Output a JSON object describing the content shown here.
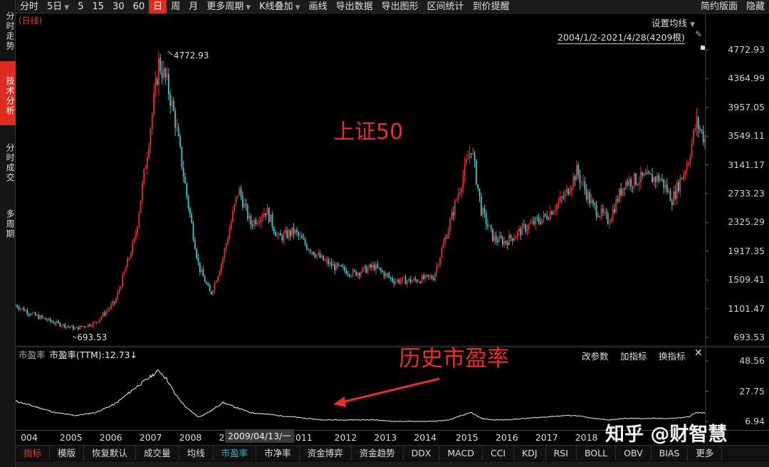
{
  "toolbar": {
    "items": [
      "分时",
      "5日",
      "5",
      "15",
      "30",
      "60",
      "日",
      "周",
      "月",
      "更多周期",
      "K线叠加",
      "画线",
      "导出数据",
      "导出图形",
      "区间统计",
      "到价提醒"
    ],
    "right": [
      "简约版面",
      "隐藏"
    ]
  },
  "left_rail": [
    "分时走势",
    "技术分析",
    "分时成交",
    "多周期"
  ],
  "main_chart": {
    "period_tag": "(日线)",
    "settings_label": "设置均线",
    "range_label": "2004/1/2-2021/4/28(4209根)",
    "high_label": "4772.93",
    "low_label": "693.53",
    "annotation": "上证50",
    "colors": {
      "up": "#e8302a",
      "down": "#3ec6cf",
      "annotation": "#e8302a"
    }
  },
  "sub_chart": {
    "name": "市盈率",
    "value_label": "市盈率(TTM):12.73↓",
    "buttons": [
      "改参数",
      "加指标",
      "换指标"
    ],
    "annotation": "历史市盈率",
    "y_ticks": [
      "48.56",
      "27.75",
      "6.94"
    ]
  },
  "x_axis": {
    "labels": [
      "004",
      "2005",
      "2006",
      "2007",
      "2008",
      "20",
      "2011",
      "2012",
      "2013",
      "2014",
      "2015",
      "2016",
      "2017",
      "2018"
    ],
    "cursor_label": "2009/04/13/一"
  },
  "bottom_tabs": [
    "指标",
    "模版",
    "恢复默认",
    "成交量",
    "均线",
    "市盈率",
    "市净率",
    "资金博弈",
    "资金趋势",
    "DDX",
    "MACD",
    "CCI",
    "KDJ",
    "RSI",
    "BOLL",
    "OBV",
    "BIAS",
    "更多"
  ],
  "watermark": "知乎 @财智慧",
  "chart_data": {
    "type": "line",
    "title": "上证50",
    "y_ticks": [
      "4772.93",
      "4364.99",
      "3957.05",
      "3549.11",
      "3141.17",
      "2733.23",
      "2325.29",
      "1917.35",
      "1509.41",
      "1101.47",
      "693.53"
    ],
    "ylim": [
      693.53,
      4772.93
    ],
    "x": [
      2004.0,
      2004.5,
      2005.0,
      2005.5,
      2006.0,
      2006.5,
      2007.0,
      2007.3,
      2007.6,
      2007.8,
      2008.0,
      2008.3,
      2008.6,
      2008.9,
      2009.2,
      2009.6,
      2009.9,
      2010.3,
      2010.6,
      2011.0,
      2011.3,
      2011.7,
      2012.0,
      2012.5,
      2013.0,
      2013.5,
      2014.0,
      2014.5,
      2014.9,
      2015.2,
      2015.45,
      2015.7,
      2016.0,
      2016.3,
      2016.8,
      2017.3,
      2017.8,
      2018.1,
      2018.5,
      2018.9,
      2019.3,
      2019.8,
      2020.2,
      2020.5,
      2020.9,
      2021.1,
      2021.32
    ],
    "series": [
      {
        "values": [
          1150,
          1000,
          900,
          820,
          900,
          1200,
          2100,
          3300,
          4600,
          4300,
          3800,
          2700,
          1700,
          1300,
          1800,
          2800,
          2300,
          2500,
          2100,
          2200,
          2000,
          1800,
          1700,
          1600,
          1700,
          1500,
          1500,
          1550,
          2300,
          2900,
          3400,
          2500,
          2100,
          2050,
          2250,
          2400,
          2700,
          3050,
          2550,
          2350,
          2900,
          2950,
          2950,
          2650,
          3200,
          3750,
          3500
        ]
      },
      {
        "name": "市盈率(TTM)",
        "values": [
          21,
          17,
          13,
          11,
          13,
          19,
          30,
          36,
          42,
          36,
          26,
          16,
          10,
          14,
          20,
          16,
          13,
          12,
          11,
          10,
          9,
          8,
          8,
          8,
          8,
          7,
          7,
          7,
          8,
          11,
          13,
          9,
          8,
          8,
          9,
          10,
          11,
          11,
          9,
          8,
          9,
          9,
          9,
          9,
          10,
          13,
          12.73
        ]
      }
    ],
    "sub_ylim": [
      6.94,
      48.56
    ]
  }
}
